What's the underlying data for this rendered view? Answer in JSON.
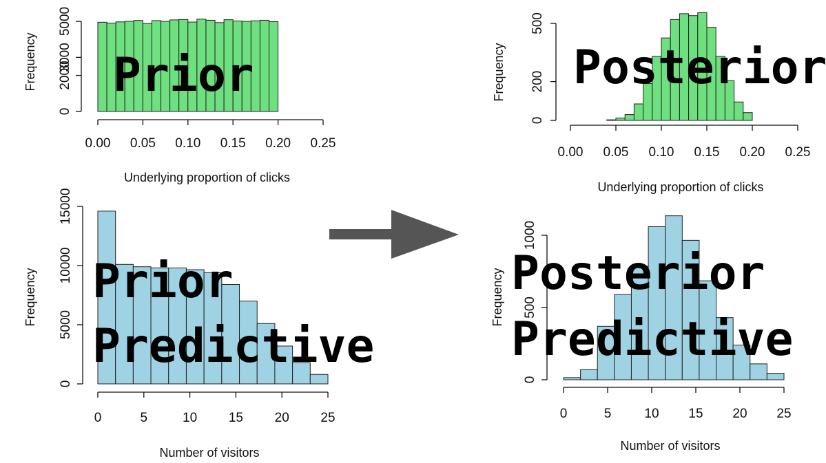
{
  "colors": {
    "prior_bar": "#6ee07f",
    "predictive_bar": "#9fd3e3",
    "arrow": "#555555",
    "edge": "#222222"
  },
  "arrow_icon": "right-arrow-icon",
  "chart_data": [
    {
      "id": "prior",
      "type": "bar",
      "overlay_label": [
        "Prior"
      ],
      "xlabel": "Underlying proportion of clicks",
      "ylabel": "Frequency",
      "xlim": [
        0,
        0.25
      ],
      "ylim": [
        0,
        5000
      ],
      "xticks": [
        "0.00",
        "0.05",
        "0.10",
        "0.15",
        "0.20",
        "0.25"
      ],
      "yticks": [
        "0",
        "2000",
        "3000",
        "5000"
      ],
      "bin_width": 0.01,
      "bin_start": 0,
      "values": [
        4950,
        4900,
        4970,
        5000,
        5050,
        4880,
        5040,
        5000,
        5080,
        5100,
        4960,
        5120,
        5060,
        4930,
        5090,
        5020,
        5000,
        5030,
        5060,
        4980
      ]
    },
    {
      "id": "posterior",
      "type": "bar",
      "overlay_label": [
        "Posterior"
      ],
      "xlabel": "Underlying proportion of clicks",
      "ylabel": "Frequency",
      "xlim": [
        0,
        0.25
      ],
      "ylim": [
        0,
        500
      ],
      "xticks": [
        "0.00",
        "0.05",
        "0.10",
        "0.15",
        "0.20",
        "0.25"
      ],
      "yticks": [
        "0",
        "200",
        "500"
      ],
      "bin_width": 0.01,
      "bin_start": 0.04,
      "values": [
        3,
        12,
        30,
        85,
        190,
        330,
        425,
        520,
        550,
        540,
        555,
        480,
        330,
        205,
        95,
        40
      ]
    },
    {
      "id": "prior_predictive",
      "type": "bar",
      "overlay_label": [
        "Prior",
        "Predictive"
      ],
      "xlabel": "Number of visitors",
      "ylabel": "Frequency",
      "xlim": [
        0,
        26
      ],
      "ylim": [
        0,
        15000
      ],
      "xticks": [
        "0",
        "5",
        "10",
        "15",
        "20",
        "25"
      ],
      "yticks": [
        "0",
        "5000",
        "10000",
        "15000"
      ],
      "bin_width": 2,
      "bin_start": 0,
      "values": [
        14600,
        10100,
        9900,
        9800,
        9800,
        9650,
        9400,
        8400,
        7000,
        5100,
        3200,
        1800,
        800
      ]
    },
    {
      "id": "posterior_predictive",
      "type": "bar",
      "overlay_label": [
        "Posterior",
        "Predictive"
      ],
      "xlabel": "Number of visitors",
      "ylabel": "Frequency",
      "xlim": [
        0,
        26
      ],
      "ylim": [
        0,
        1000
      ],
      "xticks": [
        "0",
        "5",
        "10",
        "15",
        "20",
        "25"
      ],
      "yticks": [
        "0",
        "500",
        "1000"
      ],
      "bin_width": 2,
      "bin_start": 0,
      "values": [
        15,
        70,
        370,
        590,
        785,
        1060,
        1135,
        965,
        685,
        430,
        240,
        110,
        45
      ]
    }
  ]
}
